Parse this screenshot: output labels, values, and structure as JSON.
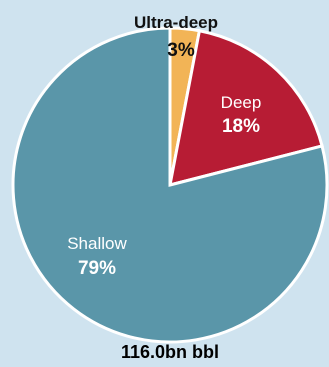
{
  "chart_data": {
    "type": "pie",
    "categories": [
      "Ultra-deep",
      "Deep",
      "Shallow"
    ],
    "values": [
      3,
      18,
      79
    ],
    "value_labels": [
      "3%",
      "18%",
      "79%"
    ],
    "colors": [
      "#f2b456",
      "#b71c34",
      "#5a96a9"
    ],
    "label_colors": {
      "name": [
        "#111111",
        "#ffffff",
        "#ffffff"
      ],
      "pct": [
        "#111111",
        "#ffffff",
        "#ffffff"
      ]
    },
    "total_label": "116.0bn bbl",
    "start": "12 o'clock",
    "direction": "clockwise",
    "background": "#cfe3ef",
    "separator_color": "#ffffff"
  }
}
